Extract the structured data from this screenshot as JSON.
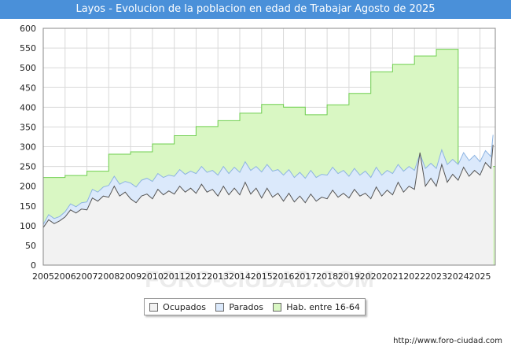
{
  "title": "Layos - Evolucion de la poblacion en edad de Trabajar Agosto de 2025",
  "footer_url": "http://www.foro-ciudad.com",
  "watermark": "FORO-CIUDAD.COM",
  "colors": {
    "title_bg": "#4a90d9",
    "ocupados_fill": "#f2f2f2",
    "ocupados_line": "#555555",
    "parados_fill": "#dbe9fb",
    "parados_line": "#8db4e2",
    "hab_fill": "#d9f7c3",
    "hab_line": "#6fcf4f",
    "grid": "#d9d9d9"
  },
  "legend": [
    {
      "key": "ocupados",
      "label": "Ocupados"
    },
    {
      "key": "parados",
      "label": "Parados"
    },
    {
      "key": "hab",
      "label": "Hab. entre 16-64"
    }
  ],
  "chart_data": {
    "type": "area",
    "title": "Layos - Evolucion de la poblacion en edad de Trabajar Agosto de 2025",
    "xlabel": "",
    "ylabel": "",
    "xlim": [
      2005,
      2025.7
    ],
    "ylim": [
      0,
      600
    ],
    "x_ticks": [
      2005,
      2006,
      2007,
      2008,
      2009,
      2010,
      2011,
      2012,
      2013,
      2014,
      2015,
      2016,
      2017,
      2018,
      2019,
      2020,
      2021,
      2022,
      2023,
      2024,
      2025
    ],
    "y_ticks": [
      0,
      50,
      100,
      150,
      200,
      250,
      300,
      350,
      400,
      450,
      500,
      550,
      600
    ],
    "grid": true,
    "legend_position": "bottom",
    "series": [
      {
        "name": "Hab. entre 16-64",
        "key": "hab",
        "step": true,
        "x": [
          2005,
          2006,
          2007,
          2008,
          2009,
          2010,
          2011,
          2012,
          2013,
          2014,
          2015,
          2016,
          2017,
          2018,
          2019,
          2020,
          2021,
          2022,
          2023,
          2024
        ],
        "values": [
          222,
          227,
          238,
          281,
          287,
          307,
          328,
          351,
          366,
          385,
          407,
          400,
          381,
          406,
          435,
          490,
          509,
          530,
          547,
          250
        ]
      },
      {
        "name": "Parados",
        "key": "parados",
        "x": [
          2005.0,
          2005.25,
          2005.5,
          2005.75,
          2006.0,
          2006.25,
          2006.5,
          2006.75,
          2007.0,
          2007.25,
          2007.5,
          2007.75,
          2008.0,
          2008.25,
          2008.5,
          2008.75,
          2009.0,
          2009.25,
          2009.5,
          2009.75,
          2010.0,
          2010.25,
          2010.5,
          2010.75,
          2011.0,
          2011.25,
          2011.5,
          2011.75,
          2012.0,
          2012.25,
          2012.5,
          2012.75,
          2013.0,
          2013.25,
          2013.5,
          2013.75,
          2014.0,
          2014.25,
          2014.5,
          2014.75,
          2015.0,
          2015.25,
          2015.5,
          2015.75,
          2016.0,
          2016.25,
          2016.5,
          2016.75,
          2017.0,
          2017.25,
          2017.5,
          2017.75,
          2018.0,
          2018.25,
          2018.5,
          2018.75,
          2019.0,
          2019.25,
          2019.5,
          2019.75,
          2020.0,
          2020.25,
          2020.5,
          2020.75,
          2021.0,
          2021.25,
          2021.5,
          2021.75,
          2022.0,
          2022.25,
          2022.5,
          2022.75,
          2023.0,
          2023.25,
          2023.5,
          2023.75,
          2024.0,
          2024.25,
          2024.5,
          2024.75,
          2025.0,
          2025.25,
          2025.5,
          2025.6
        ],
        "values": [
          103,
          128,
          118,
          123,
          135,
          155,
          148,
          158,
          160,
          192,
          185,
          198,
          202,
          225,
          205,
          212,
          208,
          198,
          215,
          220,
          212,
          232,
          222,
          228,
          225,
          242,
          230,
          238,
          232,
          250,
          235,
          240,
          228,
          250,
          232,
          248,
          235,
          262,
          240,
          250,
          236,
          255,
          238,
          242,
          228,
          242,
          222,
          235,
          220,
          240,
          222,
          230,
          228,
          248,
          232,
          240,
          225,
          245,
          228,
          238,
          222,
          248,
          228,
          240,
          232,
          255,
          238,
          250,
          240,
          282,
          245,
          258,
          245,
          292,
          255,
          268,
          255,
          285,
          265,
          278,
          262,
          290,
          275,
          330
        ]
      },
      {
        "name": "Ocupados",
        "key": "ocupados",
        "x": [
          2005.0,
          2005.25,
          2005.5,
          2005.75,
          2006.0,
          2006.25,
          2006.5,
          2006.75,
          2007.0,
          2007.25,
          2007.5,
          2007.75,
          2008.0,
          2008.25,
          2008.5,
          2008.75,
          2009.0,
          2009.25,
          2009.5,
          2009.75,
          2010.0,
          2010.25,
          2010.5,
          2010.75,
          2011.0,
          2011.25,
          2011.5,
          2011.75,
          2012.0,
          2012.25,
          2012.5,
          2012.75,
          2013.0,
          2013.25,
          2013.5,
          2013.75,
          2014.0,
          2014.25,
          2014.5,
          2014.75,
          2015.0,
          2015.25,
          2015.5,
          2015.75,
          2016.0,
          2016.25,
          2016.5,
          2016.75,
          2017.0,
          2017.25,
          2017.5,
          2017.75,
          2018.0,
          2018.25,
          2018.5,
          2018.75,
          2019.0,
          2019.25,
          2019.5,
          2019.75,
          2020.0,
          2020.25,
          2020.5,
          2020.75,
          2021.0,
          2021.25,
          2021.5,
          2021.75,
          2022.0,
          2022.25,
          2022.5,
          2022.75,
          2023.0,
          2023.25,
          2023.5,
          2023.75,
          2024.0,
          2024.25,
          2024.5,
          2024.75,
          2025.0,
          2025.25,
          2025.5,
          2025.6
        ],
        "values": [
          95,
          115,
          105,
          112,
          122,
          140,
          132,
          142,
          140,
          170,
          162,
          175,
          172,
          200,
          175,
          185,
          168,
          158,
          175,
          180,
          168,
          192,
          178,
          188,
          180,
          200,
          185,
          195,
          182,
          205,
          185,
          192,
          175,
          200,
          178,
          195,
          178,
          210,
          180,
          195,
          170,
          195,
          172,
          182,
          162,
          182,
          160,
          175,
          158,
          180,
          162,
          172,
          168,
          190,
          172,
          182,
          170,
          192,
          175,
          182,
          168,
          198,
          175,
          190,
          178,
          210,
          185,
          200,
          192,
          285,
          200,
          220,
          200,
          255,
          210,
          230,
          215,
          248,
          225,
          240,
          228,
          260,
          245,
          305
        ]
      }
    ]
  }
}
